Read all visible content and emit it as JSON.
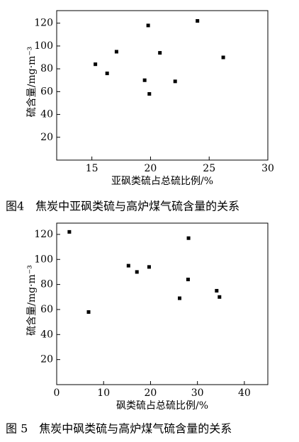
{
  "chart_data": [
    {
      "type": "scatter",
      "x_label": "亚砜类硫占总硫比例/%",
      "y_label": "硫含量/mg·m⁻³",
      "caption": "图4　焦炭中亚砜类硫与高炉煤气硫含量的关系",
      "color": "#000000",
      "x": [
        15.3,
        16.3,
        17.1,
        19.8,
        20.8,
        19.5,
        19.9,
        22.1,
        24.0,
        26.2
      ],
      "values": [
        84,
        76,
        95,
        118,
        94,
        70,
        58,
        69,
        122,
        90
      ],
      "xlim": [
        12,
        30
      ],
      "xticks": [
        15,
        20,
        25,
        30
      ],
      "ylim": [
        0,
        131
      ],
      "yticks": [
        20,
        40,
        60,
        80,
        100,
        120
      ]
    },
    {
      "type": "scatter",
      "x_label": "砜类硫占总硫比例/%",
      "y_label": "硫含量/mg·m⁻³",
      "caption": "图 5　焦炭中砜类硫与高炉煤气硫含量的关系",
      "color": "#000000",
      "x": [
        2.7,
        6.8,
        15.3,
        17.1,
        19.7,
        28.1,
        28.0,
        26.2,
        34.1,
        34.7
      ],
      "values": [
        122,
        58,
        95,
        90,
        94,
        117,
        84,
        69,
        75,
        70
      ],
      "xlim": [
        0,
        45
      ],
      "xticks": [
        0,
        10,
        20,
        30,
        40
      ],
      "ylim": [
        0,
        129
      ],
      "yticks": [
        20,
        40,
        60,
        80,
        100,
        120
      ]
    }
  ]
}
